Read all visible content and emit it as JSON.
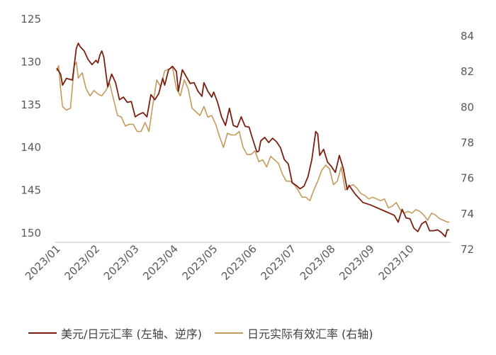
{
  "chart_data": {
    "type": "line",
    "x_tick_labels": [
      "2023/01",
      "2023/02",
      "2023/03",
      "2023/04",
      "2023/05",
      "2023/06",
      "2023/07",
      "2023/08",
      "2023/09",
      "2023/10"
    ],
    "x_range_months": [
      0,
      10.0
    ],
    "left_axis": {
      "ticks": [
        125,
        130,
        135,
        140,
        145,
        150
      ],
      "range": [
        125,
        151.5
      ],
      "inverted": true
    },
    "right_axis": {
      "ticks": [
        72,
        74,
        76,
        78,
        80,
        82,
        84
      ],
      "range": [
        71.6,
        85.0
      ],
      "inverted": false
    },
    "series": [
      {
        "name": "美元/日元汇率 (左轴、逆序)",
        "axis": "left",
        "color": "#7a1f0f",
        "points": [
          [
            0.0,
            130.8
          ],
          [
            0.1,
            131.5
          ],
          [
            0.15,
            132.8
          ],
          [
            0.25,
            132.0
          ],
          [
            0.4,
            132.2
          ],
          [
            0.5,
            128.5
          ],
          [
            0.55,
            127.9
          ],
          [
            0.6,
            128.3
          ],
          [
            0.7,
            128.8
          ],
          [
            0.8,
            129.8
          ],
          [
            0.9,
            130.4
          ],
          [
            1.0,
            129.9
          ],
          [
            1.05,
            130.2
          ],
          [
            1.1,
            129.3
          ],
          [
            1.15,
            128.8
          ],
          [
            1.2,
            129.5
          ],
          [
            1.3,
            133.0
          ],
          [
            1.4,
            131.5
          ],
          [
            1.5,
            132.5
          ],
          [
            1.6,
            134.5
          ],
          [
            1.7,
            134.2
          ],
          [
            1.8,
            134.8
          ],
          [
            1.9,
            134.7
          ],
          [
            2.0,
            136.5
          ],
          [
            2.1,
            136.2
          ],
          [
            2.2,
            136.0
          ],
          [
            2.3,
            136.5
          ],
          [
            2.4,
            133.9
          ],
          [
            2.5,
            134.5
          ],
          [
            2.6,
            133.8
          ],
          [
            2.7,
            132.0
          ],
          [
            2.75,
            132.8
          ],
          [
            2.85,
            131.0
          ],
          [
            2.95,
            130.6
          ],
          [
            3.05,
            131.2
          ],
          [
            3.1,
            133.5
          ],
          [
            3.2,
            131.0
          ],
          [
            3.3,
            131.8
          ],
          [
            3.4,
            132.6
          ],
          [
            3.5,
            132.5
          ],
          [
            3.6,
            133.5
          ],
          [
            3.7,
            134.1
          ],
          [
            3.75,
            132.5
          ],
          [
            3.85,
            133.5
          ],
          [
            3.95,
            134.2
          ],
          [
            4.0,
            133.6
          ],
          [
            4.1,
            134.8
          ],
          [
            4.2,
            136.5
          ],
          [
            4.3,
            137.5
          ],
          [
            4.4,
            135.5
          ],
          [
            4.5,
            137.5
          ],
          [
            4.6,
            137.7
          ],
          [
            4.7,
            136.5
          ],
          [
            4.8,
            137.6
          ],
          [
            4.9,
            137.7
          ],
          [
            5.0,
            139.2
          ],
          [
            5.1,
            140.6
          ],
          [
            5.15,
            140.5
          ],
          [
            5.2,
            139.3
          ],
          [
            5.3,
            138.9
          ],
          [
            5.4,
            139.5
          ],
          [
            5.5,
            139.0
          ],
          [
            5.6,
            139.4
          ],
          [
            5.7,
            140.1
          ],
          [
            5.8,
            141.5
          ],
          [
            5.9,
            142.0
          ],
          [
            6.0,
            144.2
          ],
          [
            6.1,
            144.5
          ],
          [
            6.2,
            144.9
          ],
          [
            6.3,
            144.6
          ],
          [
            6.4,
            143.5
          ],
          [
            6.5,
            141.5
          ],
          [
            6.6,
            138.2
          ],
          [
            6.65,
            138.5
          ],
          [
            6.7,
            141.0
          ],
          [
            6.8,
            140.3
          ],
          [
            6.9,
            141.8
          ],
          [
            7.0,
            142.3
          ],
          [
            7.1,
            143.0
          ],
          [
            7.2,
            141.0
          ],
          [
            7.3,
            142.5
          ],
          [
            7.4,
            145.0
          ],
          [
            7.45,
            144.5
          ],
          [
            7.6,
            145.5
          ],
          [
            7.8,
            146.5
          ],
          [
            8.0,
            146.8
          ],
          [
            8.2,
            147.2
          ],
          [
            8.4,
            147.6
          ],
          [
            8.5,
            147.8
          ],
          [
            8.6,
            148.0
          ],
          [
            8.7,
            148.8
          ],
          [
            8.8,
            147.3
          ],
          [
            8.9,
            148.3
          ],
          [
            9.0,
            148.4
          ],
          [
            9.1,
            149.5
          ],
          [
            9.2,
            149.9
          ],
          [
            9.3,
            149.0
          ],
          [
            9.4,
            148.7
          ],
          [
            9.5,
            149.8
          ],
          [
            9.6,
            149.8
          ],
          [
            9.7,
            149.7
          ],
          [
            9.8,
            150.0
          ],
          [
            9.9,
            150.5
          ],
          [
            9.95,
            149.7
          ],
          [
            10.0,
            149.7
          ]
        ]
      },
      {
        "name": "日元实际有效汇率 (右轴)",
        "axis": "right",
        "color": "#c49a5a",
        "points": [
          [
            0.0,
            82.0
          ],
          [
            0.05,
            82.3
          ],
          [
            0.1,
            81.0
          ],
          [
            0.15,
            80.0
          ],
          [
            0.25,
            79.8
          ],
          [
            0.35,
            79.9
          ],
          [
            0.45,
            82.3
          ],
          [
            0.5,
            82.5
          ],
          [
            0.55,
            81.6
          ],
          [
            0.65,
            81.9
          ],
          [
            0.75,
            81.0
          ],
          [
            0.85,
            80.6
          ],
          [
            0.95,
            80.9
          ],
          [
            1.05,
            80.7
          ],
          [
            1.15,
            80.6
          ],
          [
            1.25,
            80.9
          ],
          [
            1.35,
            81.3
          ],
          [
            1.45,
            80.4
          ],
          [
            1.55,
            79.5
          ],
          [
            1.65,
            79.4
          ],
          [
            1.75,
            78.9
          ],
          [
            1.85,
            79.0
          ],
          [
            1.95,
            79.0
          ],
          [
            2.05,
            78.6
          ],
          [
            2.15,
            78.6
          ],
          [
            2.25,
            79.1
          ],
          [
            2.35,
            78.6
          ],
          [
            2.45,
            80.1
          ],
          [
            2.55,
            81.5
          ],
          [
            2.65,
            81.1
          ],
          [
            2.75,
            82.0
          ],
          [
            2.85,
            82.1
          ],
          [
            2.95,
            82.2
          ],
          [
            3.05,
            81.0
          ],
          [
            3.15,
            80.6
          ],
          [
            3.25,
            81.5
          ],
          [
            3.35,
            81.0
          ],
          [
            3.45,
            79.9
          ],
          [
            3.55,
            79.7
          ],
          [
            3.65,
            79.5
          ],
          [
            3.75,
            80.0
          ],
          [
            3.85,
            79.4
          ],
          [
            3.95,
            79.5
          ],
          [
            4.05,
            79.0
          ],
          [
            4.15,
            78.3
          ],
          [
            4.25,
            77.7
          ],
          [
            4.35,
            78.5
          ],
          [
            4.45,
            78.4
          ],
          [
            4.55,
            78.4
          ],
          [
            4.65,
            78.6
          ],
          [
            4.75,
            77.7
          ],
          [
            4.85,
            77.3
          ],
          [
            4.95,
            77.3
          ],
          [
            5.05,
            77.5
          ],
          [
            5.15,
            76.9
          ],
          [
            5.25,
            77.0
          ],
          [
            5.35,
            76.6
          ],
          [
            5.45,
            77.2
          ],
          [
            5.55,
            77.0
          ],
          [
            5.65,
            76.8
          ],
          [
            5.75,
            76.2
          ],
          [
            5.85,
            75.8
          ],
          [
            5.95,
            75.8
          ],
          [
            6.05,
            75.6
          ],
          [
            6.15,
            75.3
          ],
          [
            6.25,
            74.9
          ],
          [
            6.35,
            74.9
          ],
          [
            6.45,
            74.7
          ],
          [
            6.55,
            75.3
          ],
          [
            6.65,
            75.8
          ],
          [
            6.75,
            76.4
          ],
          [
            6.85,
            76.7
          ],
          [
            6.95,
            76.5
          ],
          [
            7.05,
            75.6
          ],
          [
            7.15,
            75.8
          ],
          [
            7.25,
            76.6
          ],
          [
            7.35,
            75.3
          ],
          [
            7.45,
            75.5
          ],
          [
            7.55,
            75.6
          ],
          [
            7.65,
            75.4
          ],
          [
            7.75,
            75.1
          ],
          [
            7.85,
            75.0
          ],
          [
            7.95,
            74.8
          ],
          [
            8.05,
            74.9
          ],
          [
            8.15,
            74.8
          ],
          [
            8.25,
            74.7
          ],
          [
            8.35,
            74.8
          ],
          [
            8.45,
            74.3
          ],
          [
            8.55,
            74.4
          ],
          [
            8.65,
            74.6
          ],
          [
            8.75,
            74.2
          ],
          [
            8.85,
            74.0
          ],
          [
            8.95,
            74.1
          ],
          [
            9.05,
            74.0
          ],
          [
            9.15,
            74.2
          ],
          [
            9.25,
            74.1
          ],
          [
            9.35,
            73.9
          ],
          [
            9.45,
            73.6
          ],
          [
            9.55,
            74.0
          ],
          [
            9.65,
            73.9
          ],
          [
            9.75,
            73.7
          ],
          [
            9.85,
            73.6
          ],
          [
            9.95,
            73.5
          ],
          [
            10.0,
            73.5
          ]
        ]
      }
    ],
    "grid": false,
    "legend_position": "bottom"
  }
}
